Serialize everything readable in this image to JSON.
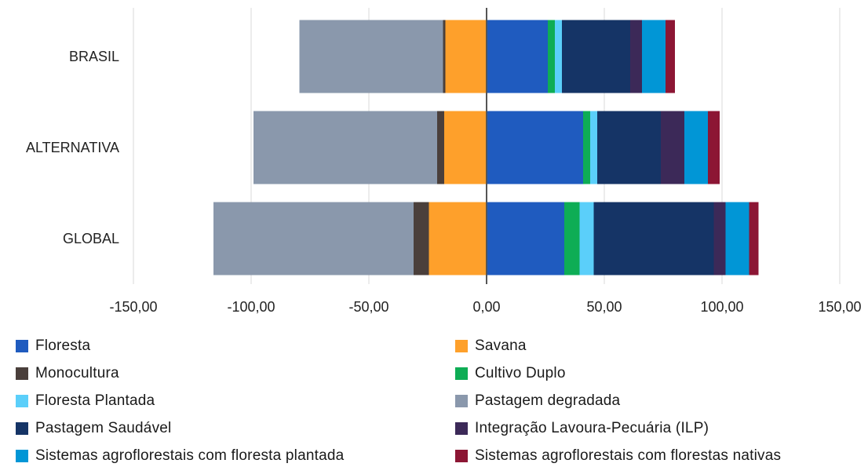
{
  "chart_data": {
    "type": "bar",
    "orientation": "horizontal",
    "stacked": true,
    "categories": [
      "BRASIL",
      "ALTERNATIVA",
      "GLOBAL"
    ],
    "xlim": [
      -150,
      150
    ],
    "xticks": [
      -150,
      -100,
      -50,
      0,
      50,
      100,
      150
    ],
    "xtick_labels": [
      "-150,00",
      "-100,00",
      "-50,00",
      "0,00",
      "50,00",
      "100,00",
      "150,00"
    ],
    "grid": true,
    "legend_position": "bottom",
    "series": [
      {
        "name": "Floresta",
        "color": "#1f5bbf",
        "values": [
          26,
          41,
          33
        ]
      },
      {
        "name": "Savana",
        "color": "#fea02b",
        "values": [
          -17.5,
          -18,
          -24.5
        ]
      },
      {
        "name": "Monocultura",
        "color": "#4a3f3b",
        "values": [
          -1,
          -3,
          -6.5
        ]
      },
      {
        "name": "Cultivo Duplo",
        "color": "#0ead55",
        "values": [
          3,
          3,
          6.5
        ]
      },
      {
        "name": "Floresta Plantada",
        "color": "#5bcffa",
        "values": [
          3,
          3,
          6
        ]
      },
      {
        "name": "Pastagem degradada",
        "color": "#8a98ac",
        "values": [
          -61,
          -78,
          -85
        ]
      },
      {
        "name": "Pastagem Saudável",
        "color": "#153466",
        "values": [
          29,
          27,
          51
        ]
      },
      {
        "name": "Integração Lavoura-Pecuária (ILP)",
        "color": "#3c2958",
        "values": [
          5,
          10,
          5
        ]
      },
      {
        "name": "Sistemas agroflorestais com floresta plantada",
        "color": "#0196d6",
        "values": [
          10,
          10,
          10
        ]
      },
      {
        "name": "Sistemas agroflorestais com florestas nativas",
        "color": "#8c1634",
        "values": [
          4,
          5,
          4
        ]
      }
    ]
  },
  "legend": {
    "items": [
      {
        "label": "Floresta",
        "color": "#1f5bbf"
      },
      {
        "label": "Savana",
        "color": "#fea02b"
      },
      {
        "label": "Monocultura",
        "color": "#4a3f3b"
      },
      {
        "label": "Cultivo Duplo",
        "color": "#0ead55"
      },
      {
        "label": "Floresta Plantada",
        "color": "#5bcffa"
      },
      {
        "label": "Pastagem degradada",
        "color": "#8a98ac"
      },
      {
        "label": "Pastagem Saudável",
        "color": "#153466"
      },
      {
        "label": "Integração Lavoura-Pecuária (ILP)",
        "color": "#3c2958"
      },
      {
        "label": "Sistemas agroflorestais com floresta plantada",
        "color": "#0196d6"
      },
      {
        "label": "Sistemas agroflorestais com florestas nativas",
        "color": "#8c1634"
      }
    ]
  }
}
